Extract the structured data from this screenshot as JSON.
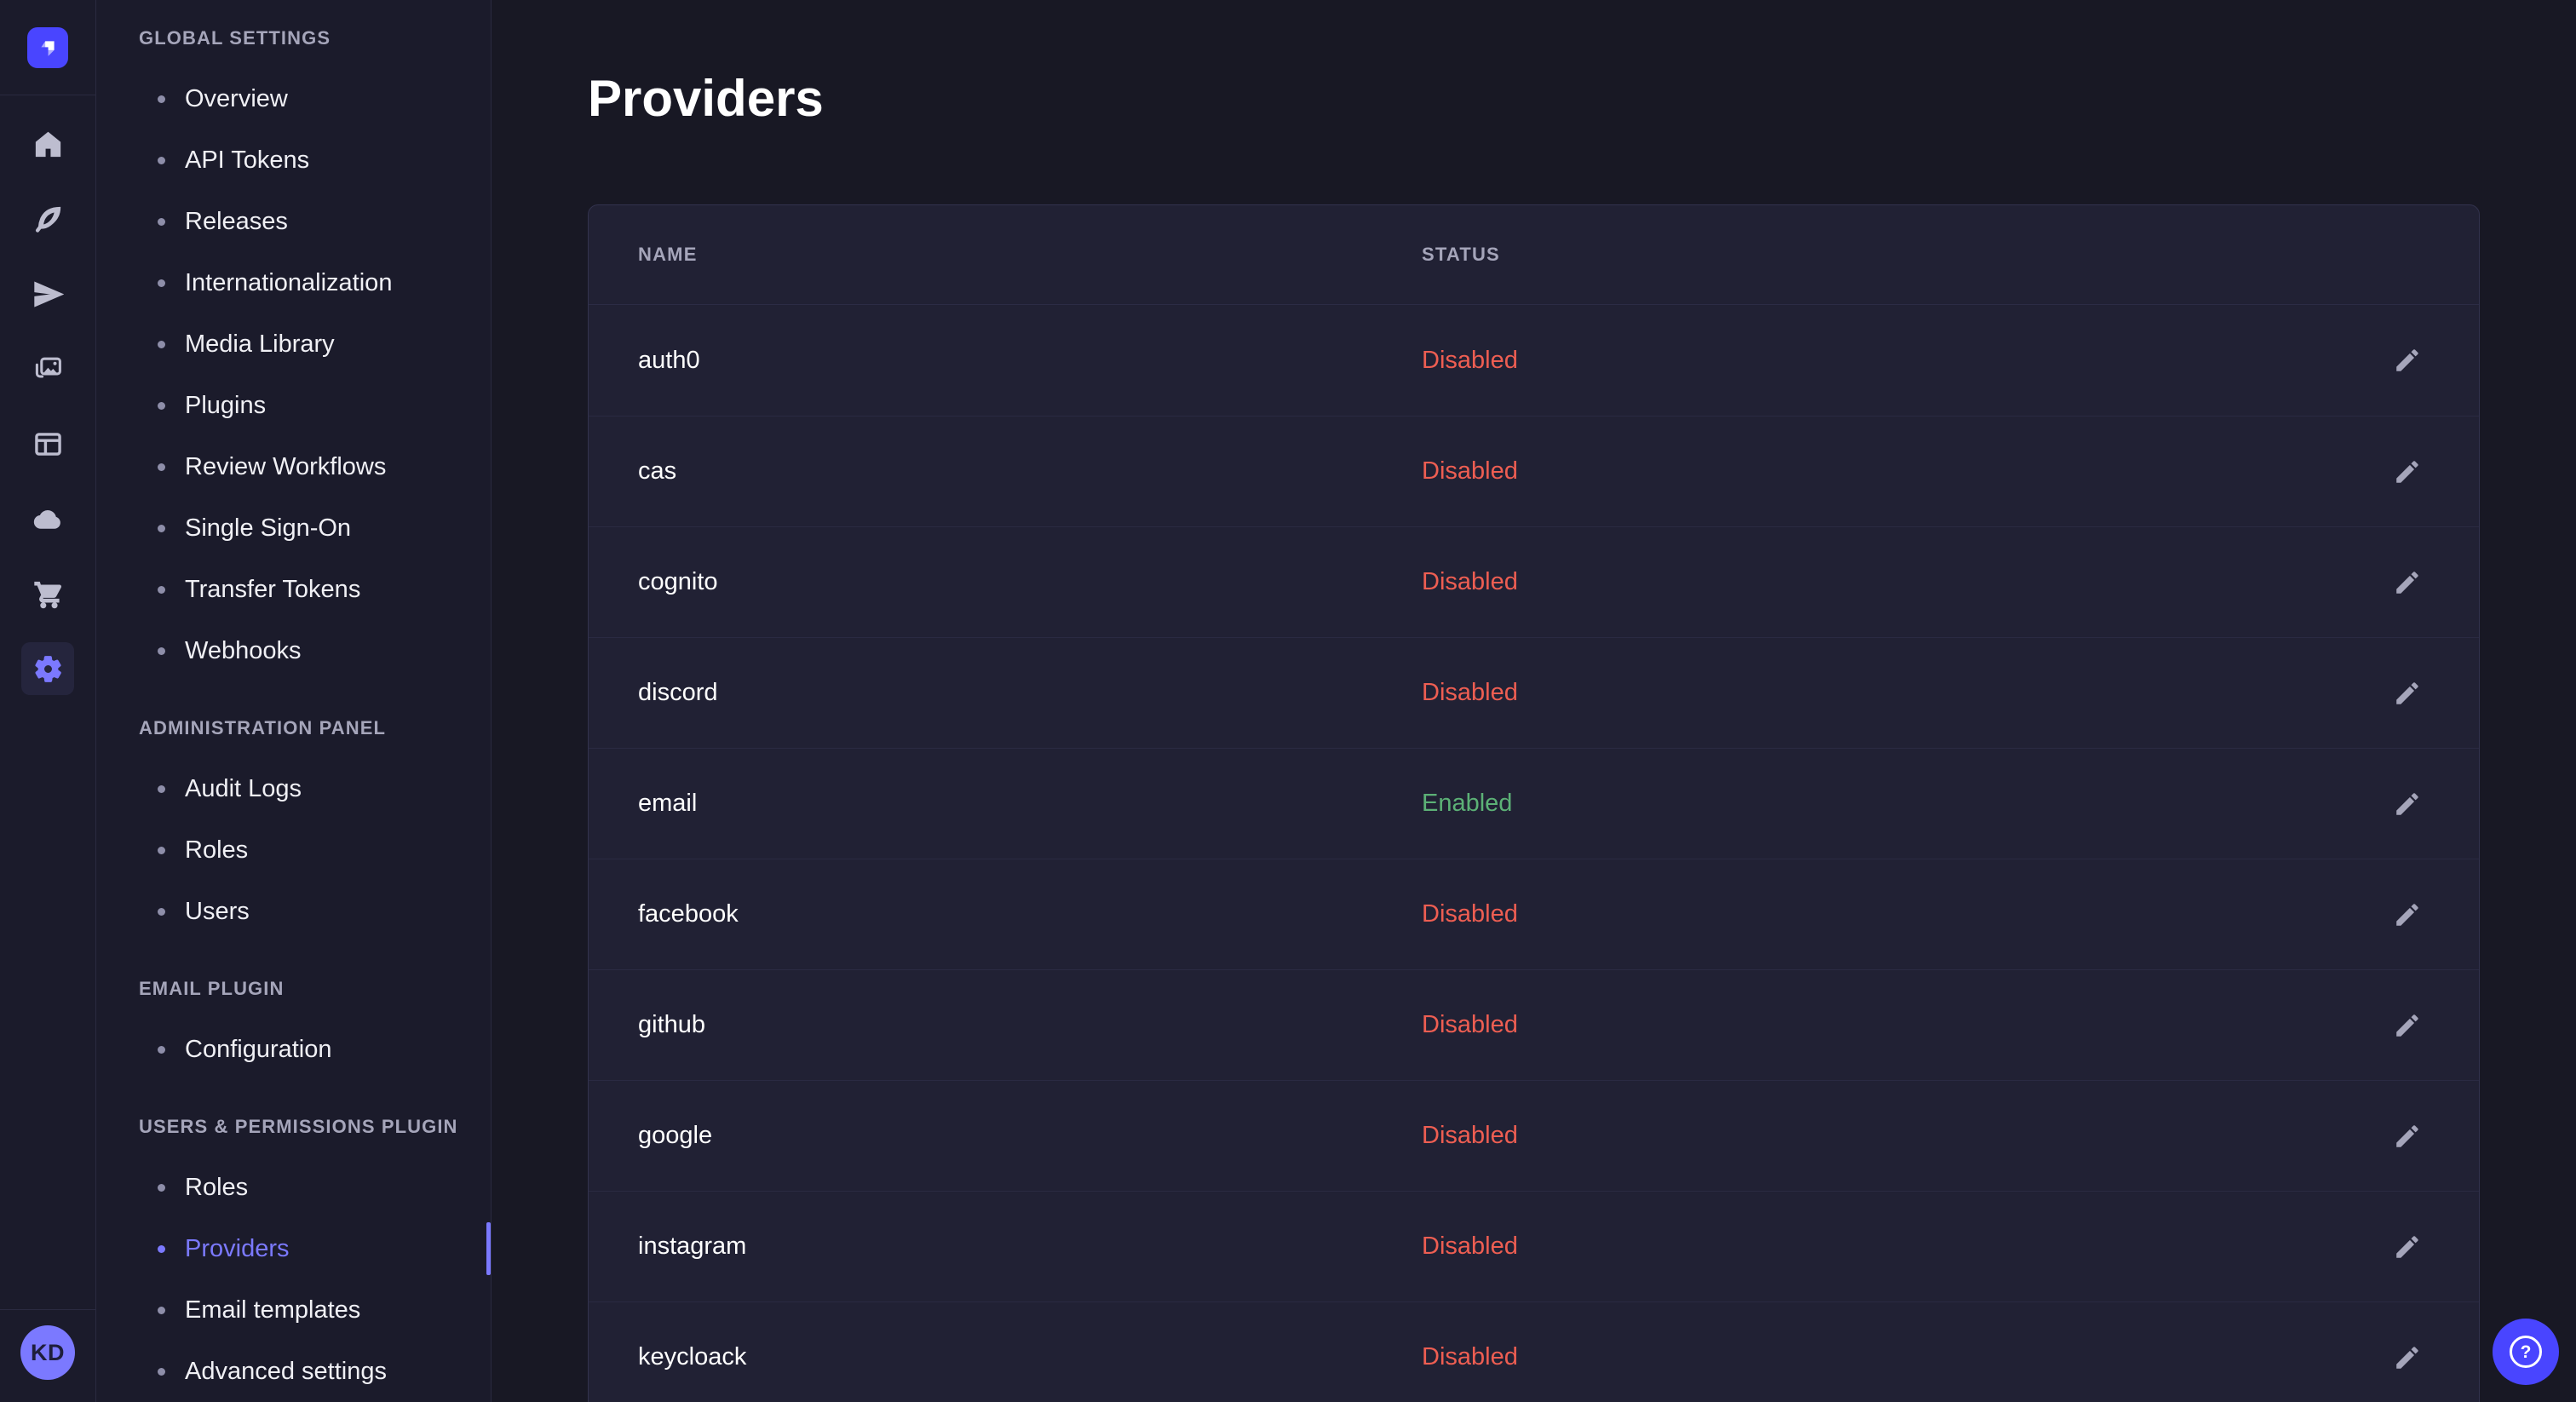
{
  "colors": {
    "accent": "#4945ff",
    "accent_light": "#7b79ff",
    "danger": "#ee5e52",
    "success": "#5cb176",
    "app_background": "#181824",
    "sidebar_background": "#1b1b2b",
    "card_background": "#212134",
    "border": "#2a2a40",
    "muted_text": "#a5a5ba"
  },
  "rail": {
    "logo_icon": "strapi-logo-icon",
    "items": [
      {
        "icon": "home-icon",
        "active": false
      },
      {
        "icon": "feather-icon",
        "active": false
      },
      {
        "icon": "paper-plane-icon",
        "active": false
      },
      {
        "icon": "media-library-icon",
        "active": false
      },
      {
        "icon": "layout-icon",
        "active": false
      },
      {
        "icon": "cloud-icon",
        "active": false
      },
      {
        "icon": "cart-icon",
        "active": false
      },
      {
        "icon": "settings-gear-icon",
        "active": true
      }
    ],
    "avatar": {
      "initials": "KD"
    }
  },
  "sidebar": {
    "sections": [
      {
        "label": "Global settings",
        "items": [
          {
            "label": "Overview",
            "active": false
          },
          {
            "label": "API Tokens",
            "active": false
          },
          {
            "label": "Releases",
            "active": false
          },
          {
            "label": "Internationalization",
            "active": false
          },
          {
            "label": "Media Library",
            "active": false
          },
          {
            "label": "Plugins",
            "active": false
          },
          {
            "label": "Review Workflows",
            "active": false
          },
          {
            "label": "Single Sign-On",
            "active": false
          },
          {
            "label": "Transfer Tokens",
            "active": false
          },
          {
            "label": "Webhooks",
            "active": false
          }
        ]
      },
      {
        "label": "Administration panel",
        "items": [
          {
            "label": "Audit Logs",
            "active": false
          },
          {
            "label": "Roles",
            "active": false
          },
          {
            "label": "Users",
            "active": false
          }
        ]
      },
      {
        "label": "Email plugin",
        "items": [
          {
            "label": "Configuration",
            "active": false
          }
        ]
      },
      {
        "label": "Users & Permissions plugin",
        "items": [
          {
            "label": "Roles",
            "active": false
          },
          {
            "label": "Providers",
            "active": true
          },
          {
            "label": "Email templates",
            "active": false
          },
          {
            "label": "Advanced settings",
            "active": false
          }
        ]
      }
    ]
  },
  "main": {
    "title": "Providers",
    "table": {
      "columns": [
        "Name",
        "Status"
      ],
      "rows": [
        {
          "name": "auth0",
          "status": "Disabled"
        },
        {
          "name": "cas",
          "status": "Disabled"
        },
        {
          "name": "cognito",
          "status": "Disabled"
        },
        {
          "name": "discord",
          "status": "Disabled"
        },
        {
          "name": "email",
          "status": "Enabled"
        },
        {
          "name": "facebook",
          "status": "Disabled"
        },
        {
          "name": "github",
          "status": "Disabled"
        },
        {
          "name": "google",
          "status": "Disabled"
        },
        {
          "name": "instagram",
          "status": "Disabled"
        },
        {
          "name": "keycloack",
          "status": "Disabled"
        }
      ]
    }
  },
  "help": {
    "question_mark": "?"
  }
}
